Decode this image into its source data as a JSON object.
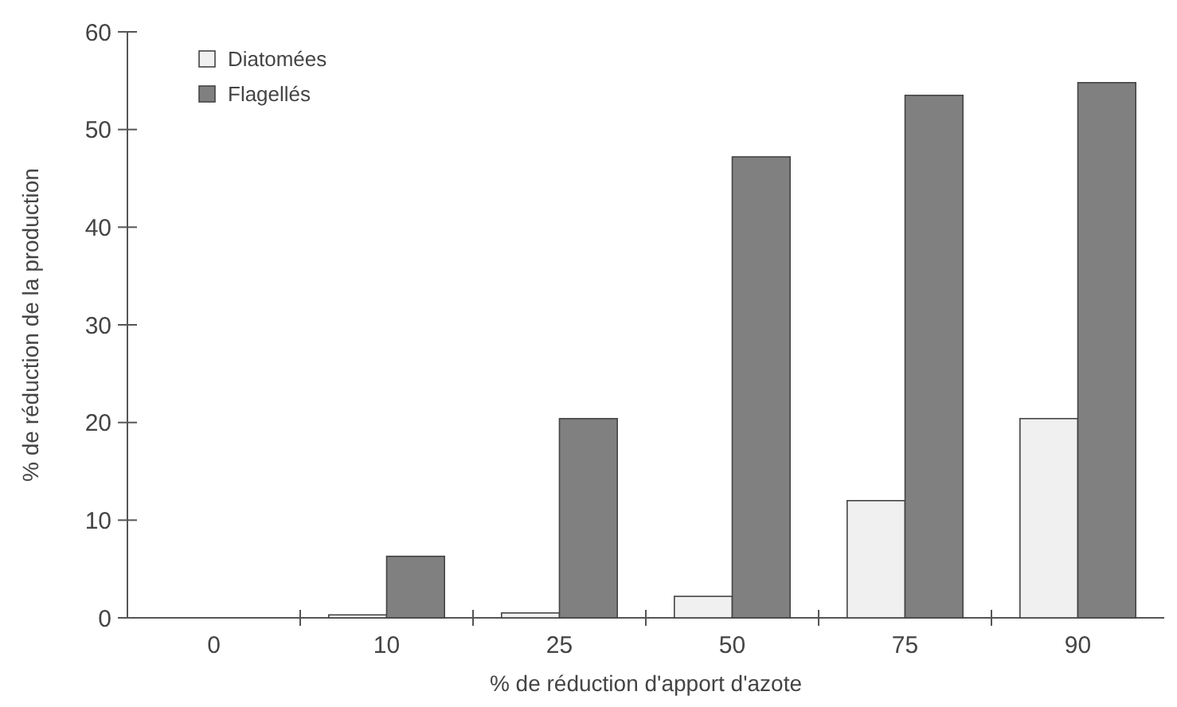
{
  "chart_data": {
    "type": "bar",
    "xlabel": "% de réduction d'apport d'azote",
    "ylabel": "% de réduction de la production",
    "categories": [
      "0",
      "10",
      "25",
      "50",
      "75",
      "90"
    ],
    "series": [
      {
        "name": "Diatomées",
        "color": "#f0f0f0",
        "values": [
          0,
          0.3,
          0.5,
          2.2,
          12,
          20.4
        ]
      },
      {
        "name": "Flagellés",
        "color": "#808080",
        "values": [
          0,
          6.3,
          20.4,
          47.2,
          53.5,
          54.8
        ]
      }
    ],
    "ylim": [
      0,
      60
    ],
    "yticks": [
      0,
      10,
      20,
      30,
      40,
      50,
      60
    ],
    "legend": "top left",
    "grid": false
  }
}
